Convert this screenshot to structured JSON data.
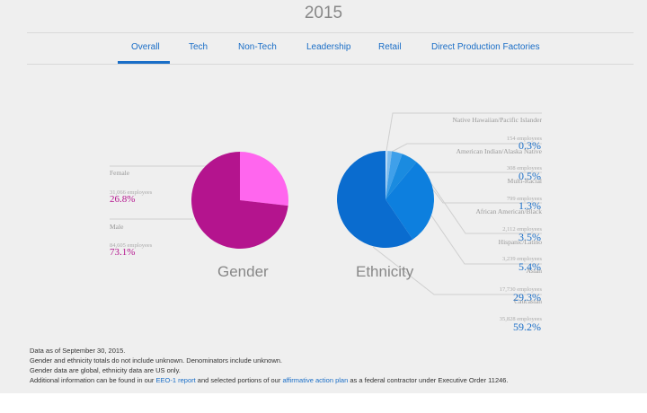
{
  "header": {
    "year": "2015"
  },
  "tabs": [
    {
      "label": "Overall",
      "active": true
    },
    {
      "label": "Tech"
    },
    {
      "label": "Non-Tech"
    },
    {
      "label": "Leadership"
    },
    {
      "label": "Retail"
    },
    {
      "label": "Direct Production Factories"
    }
  ],
  "colors": {
    "accent": "#1a6ec7",
    "female": "#ff66ee",
    "male": "#b4148e"
  },
  "gender": {
    "title": "Gender",
    "items": [
      {
        "label": "Female",
        "employees": "31,066 employees",
        "percent": "26.8%"
      },
      {
        "label": "Male",
        "employees": "84,605 employees",
        "percent": "73.1%"
      }
    ]
  },
  "ethnicity": {
    "title": "Ethnicity",
    "items": [
      {
        "label": "Native Hawaiian/Pacific Islander",
        "employees": "154 employees",
        "percent": "0.3%"
      },
      {
        "label": "American Indian/Alaska Native",
        "employees": "308 employees",
        "percent": "0.5%"
      },
      {
        "label": "Multi-Racial",
        "employees": "799 employees",
        "percent": "1.3%"
      },
      {
        "label": "African American/Black",
        "employees": "2,112 employees",
        "percent": "3.5%"
      },
      {
        "label": "Hispanic/Latino",
        "employees": "3,239 employees",
        "percent": "5.4%"
      },
      {
        "label": "Asian",
        "employees": "17,730 employees",
        "percent": "29.3%"
      },
      {
        "label": "Caucasian",
        "employees": "35,828 employees",
        "percent": "59.2%"
      }
    ]
  },
  "chart_data": [
    {
      "type": "pie",
      "title": "Gender",
      "categories": [
        "Female",
        "Male"
      ],
      "values": [
        26.8,
        73.1
      ],
      "colors": [
        "#ff66ee",
        "#b4148e"
      ]
    },
    {
      "type": "pie",
      "title": "Ethnicity",
      "categories": [
        "Native Hawaiian/Pacific Islander",
        "American Indian/Alaska Native",
        "Multi-Racial",
        "African American/Black",
        "Hispanic/Latino",
        "Asian",
        "Caucasian"
      ],
      "values": [
        0.3,
        0.5,
        1.3,
        3.5,
        5.4,
        29.3,
        59.2
      ],
      "colors": [
        "#d6e8f8",
        "#a8d2f4",
        "#7cbcef",
        "#3fa0ea",
        "#1a8be0",
        "#0d7fde",
        "#0a6ccf"
      ]
    }
  ],
  "notes": {
    "line1": "Data as of September 30, 2015.",
    "line2": "Gender and ethnicity totals do not include unknown. Denominators include unknown.",
    "line3": "Gender data are global, ethnicity data are US only.",
    "line4_a": "Additional information can be found in our ",
    "link1": "EEO-1 report",
    "line4_b": " and selected portions of our ",
    "link2": "affirmative action plan",
    "line4_c": " as a federal contractor under Executive Order 11246."
  }
}
